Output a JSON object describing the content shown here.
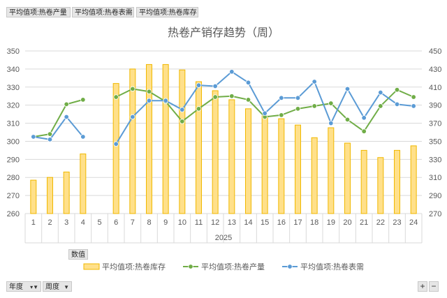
{
  "field_buttons": [
    "平均值项:热卷产量",
    "平均值项:热卷表需",
    "平均值项:热卷库存"
  ],
  "values_button": "数值",
  "bottom_buttons": [
    {
      "label": "年度",
      "icon": "filter-icon"
    },
    {
      "label": "周度",
      "icon": "dropdown-icon"
    }
  ],
  "zoom_buttons": [
    "+",
    "−"
  ],
  "colors": {
    "bar_fill": "#ffe08a",
    "bar_stroke": "#f0b800",
    "production": "#70ad47",
    "demand": "#5b9bd5",
    "grid": "#d9d9d9",
    "text": "#595959"
  },
  "chart_data": {
    "type": "bar-line-combo",
    "title": "热卷产销存趋势（周）",
    "group_label": "2025",
    "categories": [
      "1",
      "2",
      "3",
      "4",
      "5",
      "6",
      "7",
      "8",
      "9",
      "10",
      "11",
      "12",
      "13",
      "14",
      "15",
      "16",
      "17",
      "18",
      "19",
      "20",
      "21",
      "22",
      "23",
      "24"
    ],
    "y_left": {
      "min": 260,
      "max": 350,
      "step": 10,
      "ticks": [
        "260",
        "270",
        "280",
        "290",
        "300",
        "310",
        "320",
        "330",
        "340",
        "350"
      ]
    },
    "y_right": {
      "min": 270,
      "max": 450,
      "step": 20,
      "ticks": [
        "270",
        "290",
        "310",
        "330",
        "350",
        "370",
        "390",
        "410",
        "430",
        "450"
      ]
    },
    "series": [
      {
        "name": "平均值项:热卷库存",
        "kind": "bar",
        "axis": "left",
        "values": [
          278.5,
          280,
          283,
          293,
          null,
          332,
          340,
          342.5,
          342.5,
          339.5,
          333,
          328,
          323,
          318,
          314,
          312.5,
          309,
          302,
          307.5,
          299,
          295,
          291,
          295,
          297.5
        ]
      },
      {
        "name": "平均值项:热卷产量",
        "kind": "line",
        "axis": "right",
        "values": [
          355,
          358,
          391,
          396,
          null,
          399,
          408,
          405,
          394,
          372,
          386,
          399,
          400,
          396,
          377,
          379,
          386,
          389,
          392,
          374,
          361,
          389,
          407,
          399
        ]
      },
      {
        "name": "平均值项:热卷表需",
        "kind": "line",
        "axis": "right",
        "values": [
          355,
          352,
          377,
          355,
          null,
          347,
          377,
          395,
          395,
          385,
          412,
          411,
          427,
          415,
          381,
          398,
          398,
          416,
          370,
          408,
          376,
          404,
          391,
          389
        ]
      }
    ],
    "grid": true,
    "legend_position": "bottom"
  }
}
